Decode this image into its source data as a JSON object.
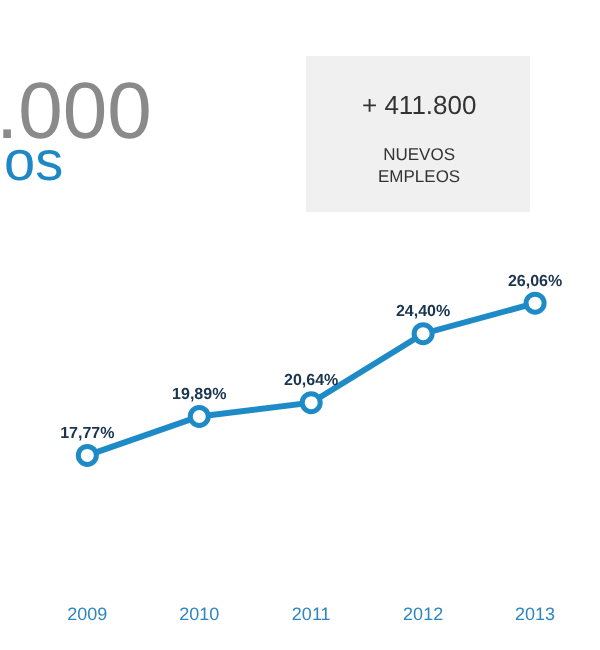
{
  "chart_data": {
    "type": "line",
    "categories": [
      "2009",
      "2010",
      "2011",
      "2012",
      "2013"
    ],
    "series": [
      {
        "color": "#1f8bc6",
        "values": [
          17.77,
          19.89,
          20.64,
          24.4,
          26.06
        ],
        "value_labels": [
          "17,77%",
          "19,89%",
          "20,64%",
          "24,40%",
          "26,06%"
        ]
      }
    ],
    "marker": "circle",
    "line_style": "solid",
    "legend": false,
    "tick_labels": "x",
    "annotations": [
      ".000",
      "os",
      "+ 411.800",
      "NUEVOS EMPLEOS"
    ]
  }
}
